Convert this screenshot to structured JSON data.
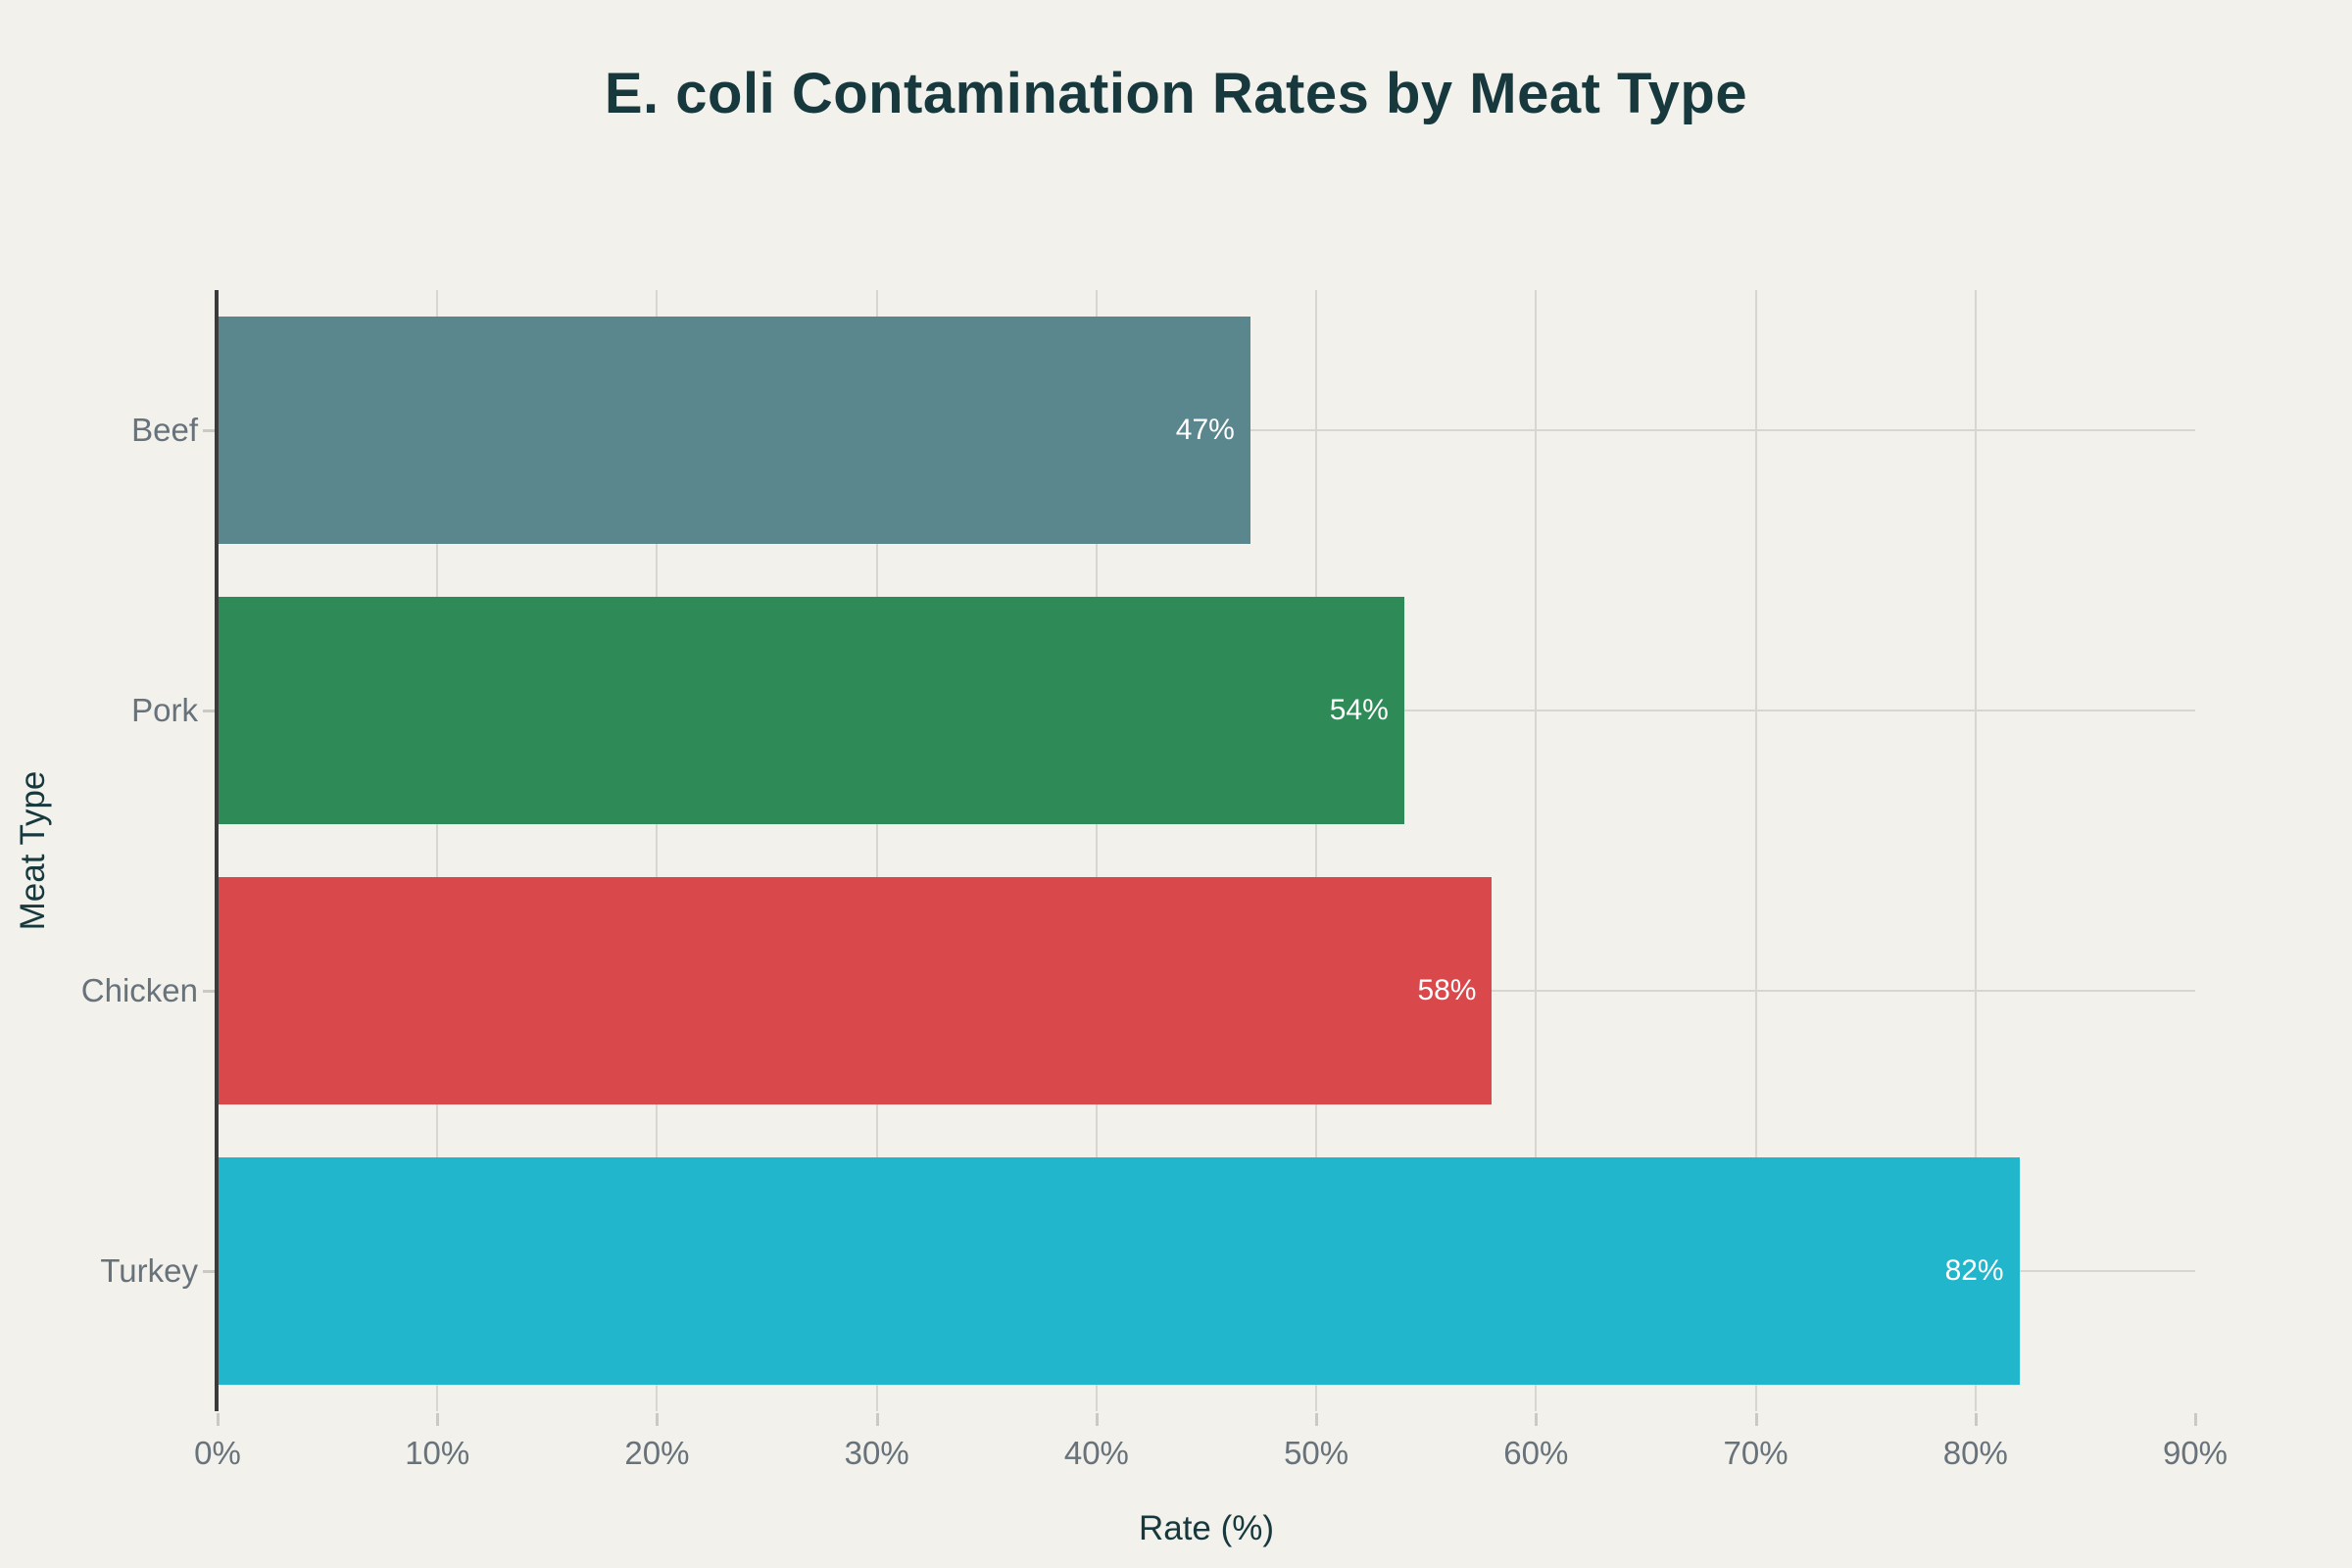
{
  "figure": {
    "title": "E. coli Contamination Rates by Meat Type"
  },
  "chart_data": {
    "type": "bar",
    "orientation": "horizontal",
    "title": "E. coli Contamination Rates by Meat Type",
    "categories": [
      "Beef",
      "Pork",
      "Chicken",
      "Turkey"
    ],
    "values": [
      47,
      54,
      58,
      82
    ],
    "bar_labels": [
      "47%",
      "54%",
      "58%",
      "82%"
    ],
    "bar_colors": [
      "#5A868E",
      "#2E8B57",
      "#D9484A",
      "#21B6CC"
    ],
    "xlabel": "Rate (%)",
    "ylabel": "Meat Type",
    "xlim": [
      0,
      90
    ],
    "x_ticks": [
      0,
      10,
      20,
      30,
      40,
      50,
      60,
      70,
      80,
      90
    ],
    "x_tick_labels": [
      "0%",
      "10%",
      "20%",
      "30%",
      "40%",
      "50%",
      "60%",
      "70%",
      "80%",
      "90%"
    ],
    "grid": "on",
    "legend": "none",
    "value_labels_position": "inside-end"
  },
  "colors": {
    "background": "#F2F1EB",
    "title_text": "#17393E",
    "axis_text": "#68727B",
    "gridline": "#D8D6CE",
    "tick_mark": "#CBC9C2",
    "spine": "#3B3B3B",
    "bar_label_text": "#FFFFFF"
  }
}
